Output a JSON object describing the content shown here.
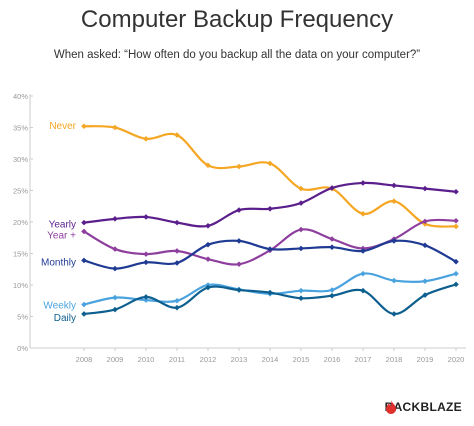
{
  "colors": {
    "Never": "#f5a623",
    "Yearly": "#5a1f8c",
    "Year +": "#8e3f9e",
    "Monthly": "#1f3a93",
    "Weekly": "#4aa3df",
    "Daily": "#0d5f8f",
    "brand": "#e0312e"
  },
  "brand": {
    "label": "BACKBLAZE",
    "icon": "flame-icon"
  },
  "chart_data": {
    "type": "line",
    "title": "Computer Backup Frequency",
    "subtitle": "When asked: “How often do you backup all the data on your computer?”",
    "x": [
      "2008",
      "2009",
      "2010",
      "2011",
      "2012",
      "2013",
      "2014",
      "2015",
      "2016",
      "2017",
      "2018",
      "2019",
      "2020"
    ],
    "yticks": [
      "0%",
      "5%",
      "10%",
      "15%",
      "20%",
      "25%",
      "30%",
      "35%",
      "40%"
    ],
    "ylim": [
      0,
      40
    ],
    "grid": false,
    "series": [
      {
        "name": "Never",
        "values": [
          35.2,
          35.0,
          33.2,
          33.8,
          29.0,
          28.8,
          29.3,
          25.3,
          25.3,
          21.3,
          23.3,
          19.7,
          19.3
        ]
      },
      {
        "name": "Yearly",
        "values": [
          19.9,
          20.5,
          20.8,
          19.9,
          19.4,
          21.9,
          22.1,
          23.0,
          25.4,
          26.2,
          25.8,
          25.3,
          24.8
        ]
      },
      {
        "name": "Year +",
        "values": [
          18.5,
          15.7,
          14.9,
          15.4,
          14.1,
          13.3,
          15.5,
          18.8,
          17.3,
          15.8,
          17.3,
          20.1,
          20.2
        ]
      },
      {
        "name": "Monthly",
        "values": [
          13.9,
          12.6,
          13.6,
          13.5,
          16.4,
          17.0,
          15.7,
          15.8,
          16.0,
          15.4,
          17.0,
          16.3,
          13.7
        ]
      },
      {
        "name": "Weekly",
        "values": [
          6.9,
          8.0,
          7.6,
          7.5,
          10.0,
          9.3,
          8.6,
          9.1,
          9.2,
          11.8,
          10.7,
          10.6,
          11.8
        ]
      },
      {
        "name": "Daily",
        "values": [
          5.4,
          6.1,
          8.1,
          6.4,
          9.6,
          9.2,
          8.8,
          7.9,
          8.3,
          9.1,
          5.4,
          8.4,
          10.1
        ]
      }
    ]
  }
}
